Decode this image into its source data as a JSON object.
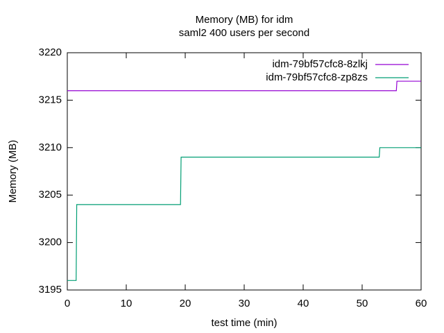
{
  "chart_data": {
    "type": "line",
    "title": "Memory (MB) for idm",
    "subtitle": "saml2 400 users per second",
    "x_label": "test time (min)",
    "y_label": "Memory (MB)",
    "xlim": [
      0,
      60
    ],
    "xticks": [
      0,
      10,
      20,
      30,
      40,
      50,
      60
    ],
    "ylim": [
      3195,
      3220
    ],
    "yticks": [
      3195,
      3200,
      3205,
      3210,
      3215,
      3220
    ],
    "grid": false,
    "legend": "top-right",
    "series": [
      {
        "name": "idm-79bf57cfc8-8zlkj",
        "color": "#9400d3",
        "x": [
          0,
          55.8,
          55.9,
          60
        ],
        "values": [
          3216,
          3216,
          3217,
          3217
        ]
      },
      {
        "name": "idm-79bf57cfc8-zp8zs",
        "color": "#009e73",
        "x": [
          0,
          1.5,
          1.6,
          19.2,
          19.3,
          52.9,
          53,
          60
        ],
        "values": [
          3196,
          3196,
          3204,
          3204,
          3209,
          3209,
          3210,
          3210
        ]
      }
    ]
  }
}
